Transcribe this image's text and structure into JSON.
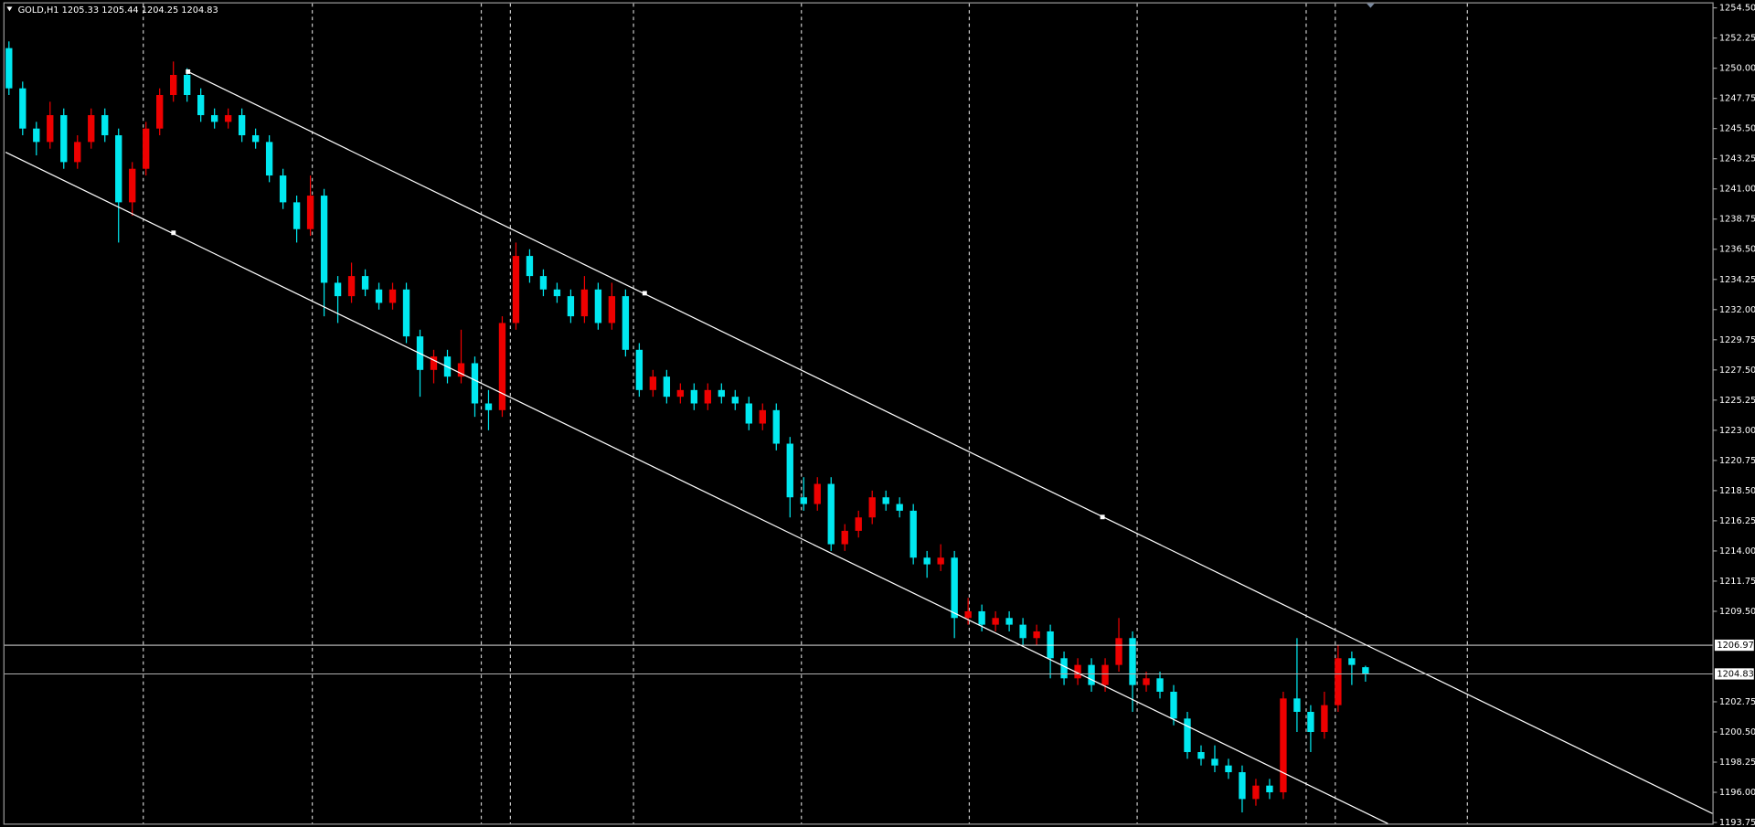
{
  "chart_data": {
    "type": "candlestick",
    "title": "GOLD,H1  1205.33 1205.44 1204.25 1204.83",
    "bull_color": "#ee0000",
    "bear_color": "#00e8f0",
    "ylim": [
      1193.75,
      1254.5
    ],
    "yticks": [
      {
        "value": 1254.5,
        "label": "1254.50"
      },
      1252.25,
      {
        "value": 1250,
        "label": "1250.00"
      },
      1247.75,
      {
        "value": 1245.5,
        "label": "1245.50"
      },
      1243.25,
      {
        "value": 1241,
        "label": "1241.00"
      },
      1238.75,
      {
        "value": 1236.5,
        "label": "1236.50"
      },
      1234.25,
      {
        "value": 1232,
        "label": "1232.00"
      },
      1229.75,
      {
        "value": 1227.5,
        "label": "1227.50"
      },
      1225.25,
      {
        "value": 1223,
        "label": "1223.00"
      },
      1220.75,
      {
        "value": 1218.5,
        "label": "1218.50"
      },
      1216.25,
      {
        "value": 1214,
        "label": "1214.00"
      },
      1211.75,
      {
        "value": 1209.5,
        "label": "1209.50"
      },
      1202.75,
      {
        "value": 1200.5,
        "label": "1200.50"
      },
      1198.25,
      {
        "value": 1196,
        "label": "1196.00"
      },
      1193.75
    ],
    "price_lines": [
      {
        "value": 1206.97,
        "color": "#ffffff"
      },
      {
        "value": 1204.83,
        "color": "#b0b0b0"
      }
    ],
    "open": [
      1251.5,
      1248.5,
      1245.5,
      1244.5,
      1246.5,
      1243.0,
      1244.5,
      1246.5,
      1245.0,
      1240.0,
      1242.5,
      1245.5,
      1248.0,
      1249.5,
      1248.0,
      1246.5,
      1246.0,
      1246.5,
      1245.0,
      1244.5,
      1242.0,
      1240.0,
      1238.0,
      1240.5,
      1234.0,
      1233.0,
      1234.5,
      1233.5,
      1232.5,
      1233.5,
      1230.0,
      1227.5,
      1228.5,
      1227.0,
      1228.0,
      1225.0,
      1224.5,
      1231.0,
      1236.0,
      1234.5,
      1233.5,
      1233.0,
      1231.5,
      1233.5,
      1231.0,
      1233.0,
      1229.0,
      1226.0,
      1227.0,
      1225.5,
      1226.0,
      1225.0,
      1226.0,
      1225.5,
      1225.0,
      1223.5,
      1224.5,
      1222.0,
      1218.0,
      1217.5,
      1219.0,
      1214.5,
      1215.5,
      1216.5,
      1218.0,
      1217.5,
      1217.0,
      1213.5,
      1213.0,
      1213.5,
      1209.0,
      1209.5,
      1208.5,
      1209.0,
      1208.5,
      1207.5,
      1208.0,
      1206.0,
      1204.5,
      1205.5,
      1204.0,
      1205.5,
      1207.5,
      1204.0,
      1204.5,
      1203.5,
      1201.5,
      1199.0,
      1198.5,
      1198.0,
      1197.5,
      1195.5,
      1196.5,
      1196.0,
      1203.0,
      1202.0,
      1200.5,
      1202.5,
      1206.0,
      1205.33
    ],
    "high": [
      1252.0,
      1249.0,
      1246.0,
      1247.5,
      1247.0,
      1245.0,
      1247.0,
      1247.0,
      1245.5,
      1243.0,
      1246.0,
      1248.5,
      1250.5,
      1250.0,
      1248.5,
      1247.0,
      1247.0,
      1247.0,
      1245.5,
      1245.0,
      1242.5,
      1240.5,
      1242.0,
      1241.0,
      1234.5,
      1235.5,
      1235.0,
      1234.0,
      1234.0,
      1234.0,
      1230.5,
      1229.0,
      1229.0,
      1230.5,
      1228.5,
      1226.0,
      1231.5,
      1237.0,
      1236.5,
      1235.0,
      1234.0,
      1233.5,
      1234.5,
      1234.0,
      1234.0,
      1233.5,
      1229.5,
      1227.5,
      1227.5,
      1226.5,
      1226.5,
      1226.5,
      1226.5,
      1226.0,
      1225.5,
      1225.0,
      1225.0,
      1222.5,
      1219.5,
      1219.5,
      1219.5,
      1216.0,
      1217.0,
      1218.5,
      1218.5,
      1218.0,
      1217.5,
      1214.0,
      1214.5,
      1214.0,
      1210.5,
      1210.0,
      1209.5,
      1209.5,
      1209.0,
      1208.5,
      1208.5,
      1206.5,
      1206.0,
      1206.0,
      1206.0,
      1209.0,
      1208.0,
      1205.0,
      1205.0,
      1204.0,
      1202.0,
      1199.5,
      1199.5,
      1198.5,
      1198.0,
      1197.0,
      1197.0,
      1203.5,
      1207.5,
      1202.5,
      1203.5,
      1207.0,
      1206.5,
      1205.44
    ],
    "low": [
      1248.0,
      1245.0,
      1243.5,
      1244.0,
      1242.5,
      1242.5,
      1244.0,
      1244.5,
      1237.0,
      1239.0,
      1242.0,
      1245.0,
      1247.5,
      1247.5,
      1246.0,
      1245.5,
      1245.5,
      1244.5,
      1244.0,
      1241.5,
      1239.5,
      1237.0,
      1237.5,
      1231.5,
      1231.0,
      1232.5,
      1233.0,
      1232.0,
      1232.0,
      1229.5,
      1225.5,
      1226.5,
      1226.5,
      1226.5,
      1224.0,
      1223.0,
      1224.0,
      1230.5,
      1234.0,
      1233.0,
      1232.5,
      1231.0,
      1231.0,
      1230.5,
      1230.5,
      1228.5,
      1225.5,
      1225.5,
      1225.0,
      1225.0,
      1224.5,
      1224.5,
      1225.0,
      1224.5,
      1223.0,
      1223.0,
      1221.5,
      1216.5,
      1217.0,
      1217.0,
      1214.0,
      1214.0,
      1215.0,
      1216.0,
      1217.0,
      1216.5,
      1213.0,
      1212.0,
      1212.5,
      1207.5,
      1208.5,
      1208.0,
      1208.0,
      1208.0,
      1207.0,
      1207.0,
      1204.5,
      1204.0,
      1204.0,
      1203.5,
      1203.5,
      1205.0,
      1202.0,
      1203.5,
      1203.0,
      1201.0,
      1198.5,
      1198.0,
      1197.5,
      1197.0,
      1194.5,
      1195.0,
      1195.5,
      1195.5,
      1200.5,
      1199.0,
      1200.0,
      1202.0,
      1204.0,
      1204.25
    ],
    "close": [
      1248.5,
      1245.5,
      1244.5,
      1246.5,
      1243.0,
      1244.5,
      1246.5,
      1245.0,
      1240.0,
      1242.5,
      1245.5,
      1248.0,
      1249.5,
      1248.0,
      1246.5,
      1246.0,
      1246.5,
      1245.0,
      1244.5,
      1242.0,
      1240.0,
      1238.0,
      1240.5,
      1234.0,
      1233.0,
      1234.5,
      1233.5,
      1232.5,
      1233.5,
      1230.0,
      1227.5,
      1228.5,
      1227.0,
      1228.0,
      1225.0,
      1224.5,
      1231.0,
      1236.0,
      1234.5,
      1233.5,
      1233.0,
      1231.5,
      1233.5,
      1231.0,
      1233.0,
      1229.0,
      1226.0,
      1227.0,
      1225.5,
      1226.0,
      1225.0,
      1226.0,
      1225.5,
      1225.0,
      1223.5,
      1224.5,
      1222.0,
      1218.0,
      1217.5,
      1219.0,
      1214.5,
      1215.5,
      1216.5,
      1218.0,
      1217.5,
      1217.0,
      1213.5,
      1213.0,
      1213.5,
      1209.0,
      1209.5,
      1208.5,
      1209.0,
      1208.5,
      1207.5,
      1208.0,
      1206.0,
      1204.5,
      1205.5,
      1204.0,
      1205.5,
      1207.5,
      1204.0,
      1204.5,
      1203.5,
      1201.5,
      1199.0,
      1198.5,
      1198.0,
      1197.5,
      1195.5,
      1196.5,
      1196.0,
      1203.0,
      1202.0,
      1200.5,
      1202.5,
      1206.0,
      1205.5,
      1204.83
    ]
  }
}
